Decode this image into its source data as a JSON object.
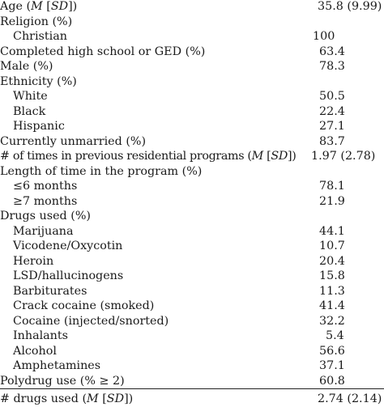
{
  "rows": [
    {
      "id": "age",
      "label_pre": "Age (",
      "label_em1": "M",
      "label_mid": " [",
      "label_em2": "SD",
      "label_post": "])",
      "value": "35.8 (9.99)",
      "indent": false
    },
    {
      "id": "religion",
      "label": "Religion (%)",
      "value": "",
      "indent": false
    },
    {
      "id": "christian",
      "label": "Christian",
      "value": "100",
      "indent": true
    },
    {
      "id": "high-school",
      "label": "Completed high school or GED (%)",
      "value": "63.4",
      "indent": false
    },
    {
      "id": "male",
      "label": "Male (%)",
      "value": "78.3",
      "indent": false
    },
    {
      "id": "ethnicity",
      "label": "Ethnicity (%)",
      "value": "",
      "indent": false
    },
    {
      "id": "white",
      "label": "White",
      "value": "50.5",
      "indent": true
    },
    {
      "id": "black",
      "label": "Black",
      "value": "22.4",
      "indent": true
    },
    {
      "id": "hispanic",
      "label": "Hispanic",
      "value": "27.1",
      "indent": true
    },
    {
      "id": "unmarried",
      "label": "Currently unmarried (%)",
      "value": "83.7",
      "indent": false
    },
    {
      "id": "prev-programs",
      "label_pre": "# of times in previous residential programs (",
      "label_em1": "M",
      "label_mid": " [",
      "label_em2": "SD",
      "label_post": "])",
      "value": "1.97 (2.78)",
      "indent": false
    },
    {
      "id": "length-time",
      "label": "Length of time in the program (%)",
      "value": "",
      "indent": false
    },
    {
      "id": "le-6-months",
      "label": "≤6 months",
      "value": "78.1",
      "indent": true
    },
    {
      "id": "ge-7-months",
      "label": "≥7 months",
      "value": "21.9",
      "indent": true
    },
    {
      "id": "drugs-used",
      "label": "Drugs used (%)",
      "value": "",
      "indent": false
    },
    {
      "id": "marijuana",
      "label": "Marijuana",
      "value": "44.1",
      "indent": true
    },
    {
      "id": "vicodene",
      "label": "Vicodene/Oxycotin",
      "value": "10.7",
      "indent": true
    },
    {
      "id": "heroin",
      "label": "Heroin",
      "value": "20.4",
      "indent": true
    },
    {
      "id": "lsd",
      "label": "LSD/hallucinogens",
      "value": "15.8",
      "indent": true
    },
    {
      "id": "barbiturates",
      "label": "Barbiturates",
      "value": "11.3",
      "indent": true
    },
    {
      "id": "crack",
      "label": "Crack cocaine (smoked)",
      "value": "41.4",
      "indent": true
    },
    {
      "id": "cocaine",
      "label": "Cocaine (injected/snorted)",
      "value": "32.2",
      "indent": true
    },
    {
      "id": "inhalants",
      "label": "Inhalants",
      "value": "5.4",
      "indent": true
    },
    {
      "id": "alcohol",
      "label": "Alcohol",
      "value": "56.6",
      "indent": true
    },
    {
      "id": "amphetamines",
      "label": "Amphetamines",
      "value": "37.1",
      "indent": true
    },
    {
      "id": "polydrug",
      "label": "Polydrug use (% ≥ 2)",
      "value": "60.8",
      "indent": false
    }
  ],
  "footer_row": {
    "label_pre": "# drugs used (",
    "label_em1": "M",
    "label_mid": " [",
    "label_em2": "SD",
    "label_post": "])",
    "value": "2.74 (2.14)"
  }
}
